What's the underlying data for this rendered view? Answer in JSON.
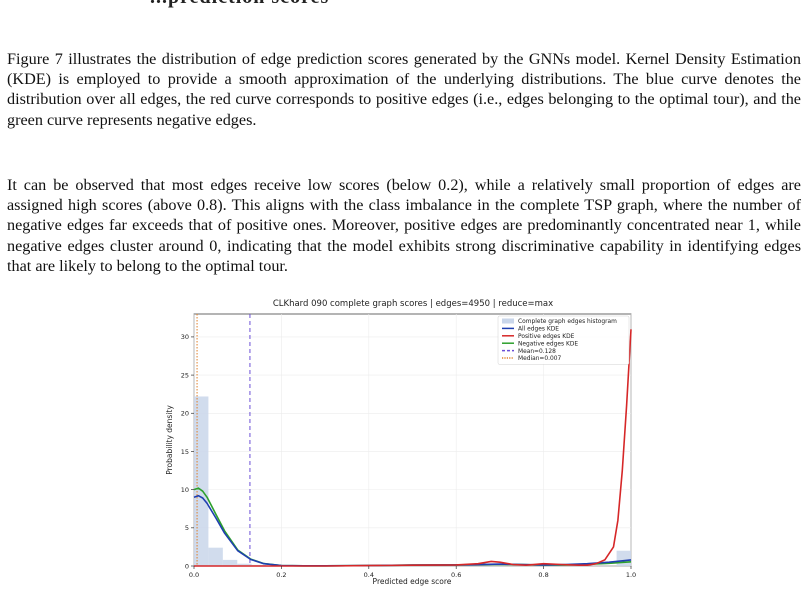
{
  "heading_fragment": "...prediction scores",
  "paragraphs": [
    "Figure 7 illustrates the distribution of edge prediction scores generated by the GNNs model. Kernel Density Estimation (KDE) is employed to provide a smooth approximation of the underlying distributions. The blue curve denotes the distribution over all edges, the red curve corresponds to positive edges (i.e., edges belonging to the optimal tour), and the green curve represents negative edges.",
    "It can be observed that most edges receive low scores (below 0.2), while a relatively small proportion of edges are assigned high scores (above 0.8). This aligns with the class imbalance in the complete TSP graph, where the number of negative edges far exceeds that of positive ones. Moreover, positive edges are predominantly concentrated near 1, while negative edges cluster around 0, indicating that the model exhibits strong discriminative capability in identifying edges that are likely to belong to the optimal tour."
  ],
  "chart_data": {
    "type": "area",
    "title": "CLKhard 090 complete graph scores | edges=4950 | reduce=max",
    "xlabel": "Predicted edge score",
    "ylabel": "Probability density",
    "xlim": [
      0.0,
      1.0
    ],
    "ylim": [
      0,
      33
    ],
    "xticks": [
      0.0,
      0.2,
      0.4,
      0.6,
      0.8,
      1.0
    ],
    "xtick_labels": [
      "0.0",
      "0.2",
      "0.4",
      "0.6",
      "0.8",
      "1.0"
    ],
    "yticks": [
      0,
      5,
      10,
      15,
      20,
      25,
      30
    ],
    "ytick_labels": [
      "0",
      "5",
      "10",
      "15",
      "20",
      "25",
      "30"
    ],
    "grid": true,
    "legend_position": "top-right",
    "histogram": {
      "name": "Complete graph edges histogram",
      "color": "#c9d6ea",
      "bins": [
        {
          "x0": 0.0,
          "x1": 0.033,
          "density": 22.2
        },
        {
          "x0": 0.033,
          "x1": 0.066,
          "density": 2.4
        },
        {
          "x0": 0.066,
          "x1": 0.099,
          "density": 0.8
        },
        {
          "x0": 0.099,
          "x1": 0.132,
          "density": 0.3
        },
        {
          "x0": 0.132,
          "x1": 0.165,
          "density": 0.15
        },
        {
          "x0": 0.967,
          "x1": 1.0,
          "density": 2.0
        }
      ]
    },
    "series": [
      {
        "name": "All edges KDE",
        "color": "#1f3fb0",
        "x": [
          0.0,
          0.01,
          0.02,
          0.03,
          0.05,
          0.07,
          0.1,
          0.13,
          0.16,
          0.2,
          0.25,
          0.3,
          0.4,
          0.5,
          0.6,
          0.65,
          0.7,
          0.75,
          0.8,
          0.85,
          0.9,
          0.95,
          1.0
        ],
        "y": [
          9.0,
          9.2,
          8.9,
          8.2,
          6.3,
          4.3,
          2.0,
          0.85,
          0.3,
          0.05,
          0.02,
          0.02,
          0.05,
          0.12,
          0.15,
          0.18,
          0.25,
          0.2,
          0.15,
          0.2,
          0.3,
          0.5,
          0.8
        ]
      },
      {
        "name": "Positive edges KDE",
        "color": "#d62728",
        "x": [
          0.0,
          0.1,
          0.2,
          0.3,
          0.4,
          0.5,
          0.6,
          0.65,
          0.68,
          0.7,
          0.73,
          0.76,
          0.8,
          0.84,
          0.88,
          0.9,
          0.92,
          0.94,
          0.96,
          0.97,
          0.98,
          0.99,
          1.0
        ],
        "y": [
          0.0,
          0.0,
          0.0,
          0.0,
          0.05,
          0.1,
          0.15,
          0.3,
          0.6,
          0.5,
          0.2,
          0.1,
          0.3,
          0.2,
          0.1,
          0.1,
          0.3,
          0.8,
          2.5,
          6.0,
          12.5,
          21.0,
          31.0
        ]
      },
      {
        "name": "Negative edges KDE",
        "color": "#2ca02c",
        "x": [
          0.0,
          0.01,
          0.02,
          0.03,
          0.05,
          0.07,
          0.1,
          0.13,
          0.16,
          0.2,
          0.25,
          0.3,
          0.4,
          0.5,
          0.6,
          0.65,
          0.7,
          0.75,
          0.8,
          0.85,
          0.9,
          0.95,
          1.0
        ],
        "y": [
          10.0,
          10.2,
          9.8,
          9.0,
          6.8,
          4.6,
          2.1,
          0.9,
          0.32,
          0.05,
          0.02,
          0.02,
          0.05,
          0.12,
          0.15,
          0.17,
          0.22,
          0.18,
          0.12,
          0.15,
          0.22,
          0.35,
          0.55
        ]
      }
    ],
    "reference_lines": [
      {
        "name": "Mean=0.128",
        "x": 0.128,
        "color": "#6b4fd6",
        "style": "dashed"
      },
      {
        "name": "Median=0.007",
        "x": 0.007,
        "color": "#e0802a",
        "style": "dotted"
      }
    ]
  }
}
